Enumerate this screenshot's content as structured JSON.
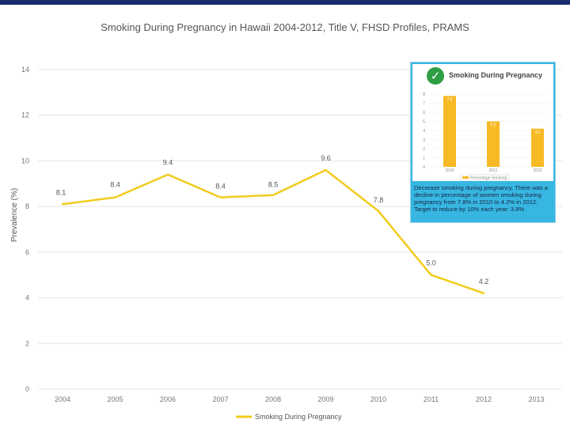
{
  "chart_data": [
    {
      "type": "line",
      "title": "Smoking During Pregnancy in Hawaii 2004-2012, Title V, FHSD Profiles, PRAMS",
      "xlabel": "",
      "ylabel": "Prevalence (%)",
      "x": [
        "2004",
        "2005",
        "2006",
        "2007",
        "2008",
        "2009",
        "2010",
        "2011",
        "2012",
        "2013"
      ],
      "ylim": [
        0,
        14
      ],
      "yticks": [
        0,
        2,
        4,
        6,
        8,
        10,
        12,
        14
      ],
      "grid": true,
      "legend": "bottom",
      "series": [
        {
          "name": "Smoking During Pregnancy",
          "color": "#f2cb1d",
          "values": [
            8.1,
            8.4,
            9.4,
            8.4,
            8.5,
            9.6,
            7.8,
            5.0,
            4.2,
            null
          ],
          "labels": [
            "8.1",
            "8.4",
            "9.4",
            "8.4",
            "8.5",
            "9.6",
            "7.8",
            "5.0",
            "4.2",
            ""
          ]
        }
      ]
    },
    {
      "type": "bar",
      "title": "Smoking During Pregnancy",
      "categories": [
        "2010",
        "2011",
        "2012"
      ],
      "ylim": [
        0,
        8
      ],
      "yticks": [
        0,
        1,
        2,
        3,
        4,
        5,
        6,
        7,
        8
      ],
      "series": [
        {
          "name": "Percentage Smoking",
          "color": "#f7b924",
          "values": [
            7.8,
            5.0,
            4.2
          ],
          "labels": [
            "7.8",
            "5.0",
            "4.2"
          ]
        }
      ]
    }
  ],
  "inset": {
    "description": "Decrease smoking during pregnancy. There was a decline in percentage of women smoking during pregnancy from 7.8% in 2010 to 4.2% in 2012. Target to reduce by 10% each year: 3.8%"
  },
  "colors": {
    "top_band": "#1a2a6e",
    "inset_background": "#37b6e2",
    "check": "#2e9e44"
  },
  "icons": {
    "check": "check-circle-icon"
  }
}
